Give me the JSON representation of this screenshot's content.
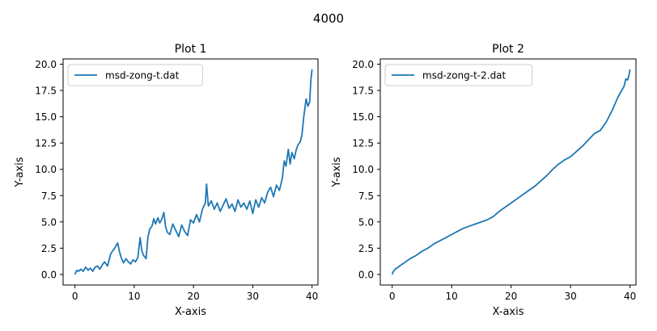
{
  "figure": {
    "suptitle": "4000"
  },
  "chart_data": [
    {
      "type": "line",
      "title": "Plot 1",
      "xlabel": "X-axis",
      "ylabel": "Y-axis",
      "xlim": [
        -2,
        41
      ],
      "ylim": [
        -1,
        20.5
      ],
      "xticks": [
        0,
        10,
        20,
        30,
        40
      ],
      "yticks": [
        0.0,
        2.5,
        5.0,
        7.5,
        10.0,
        12.5,
        15.0,
        17.5,
        20.0
      ],
      "xtick_labels": [
        "0",
        "10",
        "20",
        "30",
        "40"
      ],
      "ytick_labels": [
        "0.0",
        "2.5",
        "5.0",
        "7.5",
        "10.0",
        "12.5",
        "15.0",
        "17.5",
        "20.0"
      ],
      "grid": false,
      "legend_position": "top-left",
      "series": [
        {
          "name": "msd-zong-t.dat",
          "color": "#1f77b4",
          "x": [
            0,
            0.3,
            0.6,
            1,
            1.4,
            1.8,
            2.2,
            2.6,
            3,
            3.4,
            3.8,
            4.2,
            4.6,
            5,
            5.5,
            6,
            6.3,
            6.6,
            7,
            7.2,
            7.5,
            7.8,
            8.2,
            8.6,
            9,
            9.4,
            9.8,
            10.2,
            10.6,
            11,
            11.3,
            11.6,
            12,
            12.3,
            12.6,
            13,
            13.3,
            13.6,
            14,
            14.3,
            14.6,
            15,
            15.3,
            15.6,
            16,
            16.5,
            17,
            17.5,
            18,
            18.5,
            19,
            19.5,
            20,
            20.5,
            21,
            21.5,
            22,
            22.2,
            22.5,
            23,
            23.5,
            24,
            24.5,
            25,
            25.5,
            26,
            26.5,
            27,
            27.5,
            28,
            28.5,
            29,
            29.5,
            30,
            30.5,
            31,
            31.5,
            32,
            32.5,
            33,
            33.5,
            34,
            34.5,
            35,
            35.3,
            35.6,
            36,
            36.3,
            36.6,
            37,
            37.3,
            37.6,
            38,
            38.3,
            38.6,
            39,
            39.3,
            39.6,
            39.8,
            40
          ],
          "y": [
            0.0,
            0.4,
            0.3,
            0.5,
            0.3,
            0.7,
            0.4,
            0.6,
            0.3,
            0.7,
            0.8,
            0.5,
            0.9,
            1.2,
            0.8,
            1.9,
            2.2,
            2.4,
            2.8,
            3.0,
            2.2,
            1.6,
            1.1,
            1.5,
            1.2,
            1.0,
            1.4,
            1.2,
            1.6,
            3.5,
            2.2,
            1.8,
            1.5,
            3.5,
            4.3,
            4.6,
            5.3,
            4.8,
            5.4,
            4.9,
            5.2,
            5.9,
            4.5,
            4.0,
            3.8,
            4.8,
            4.2,
            3.6,
            4.7,
            4.1,
            3.7,
            5.2,
            4.9,
            5.7,
            5.0,
            6.2,
            6.8,
            8.6,
            6.5,
            7.0,
            6.2,
            6.8,
            6.0,
            6.6,
            7.2,
            6.3,
            6.7,
            6.0,
            7.1,
            6.4,
            6.8,
            6.2,
            7.0,
            5.8,
            7.1,
            6.4,
            7.3,
            6.8,
            7.8,
            8.3,
            7.4,
            8.5,
            8.0,
            9.2,
            10.8,
            10.3,
            11.9,
            10.5,
            11.6,
            11.0,
            11.8,
            12.3,
            12.6,
            13.3,
            15.0,
            16.7,
            16.0,
            16.4,
            18.5,
            19.5
          ]
        }
      ]
    },
    {
      "type": "line",
      "title": "Plot 2",
      "xlabel": "X-axis",
      "ylabel": "Y-axis",
      "xlim": [
        -2,
        41
      ],
      "ylim": [
        -1,
        20.5
      ],
      "xticks": [
        0,
        10,
        20,
        30,
        40
      ],
      "yticks": [
        0.0,
        2.5,
        5.0,
        7.5,
        10.0,
        12.5,
        15.0,
        17.5,
        20.0
      ],
      "xtick_labels": [
        "0",
        "10",
        "20",
        "30",
        "40"
      ],
      "ytick_labels": [
        "0.0",
        "2.5",
        "5.0",
        "7.5",
        "10.0",
        "12.5",
        "15.0",
        "17.5",
        "20.0"
      ],
      "grid": false,
      "legend_position": "top-left",
      "series": [
        {
          "name": "msd-zong-t-2.dat",
          "color": "#1f77b4",
          "x": [
            0,
            0.2,
            0.5,
            1,
            2,
            3,
            4,
            5,
            6,
            7,
            8,
            9,
            10,
            11,
            12,
            13,
            14,
            15,
            16,
            17,
            18,
            19,
            20,
            21,
            22,
            23,
            24,
            25,
            26,
            27,
            28,
            29,
            30,
            31,
            32,
            33,
            34,
            35,
            36,
            37,
            38,
            38.5,
            39,
            39.3,
            39.6,
            39.8,
            40
          ],
          "y": [
            0.0,
            0.3,
            0.5,
            0.7,
            1.1,
            1.5,
            1.8,
            2.2,
            2.5,
            2.9,
            3.2,
            3.5,
            3.8,
            4.1,
            4.4,
            4.6,
            4.8,
            5.0,
            5.2,
            5.5,
            6.0,
            6.4,
            6.8,
            7.2,
            7.6,
            8.0,
            8.4,
            8.9,
            9.4,
            10.0,
            10.5,
            10.9,
            11.2,
            11.7,
            12.2,
            12.8,
            13.4,
            13.7,
            14.5,
            15.6,
            16.9,
            17.4,
            17.9,
            18.6,
            18.5,
            18.9,
            19.5
          ]
        }
      ]
    }
  ]
}
